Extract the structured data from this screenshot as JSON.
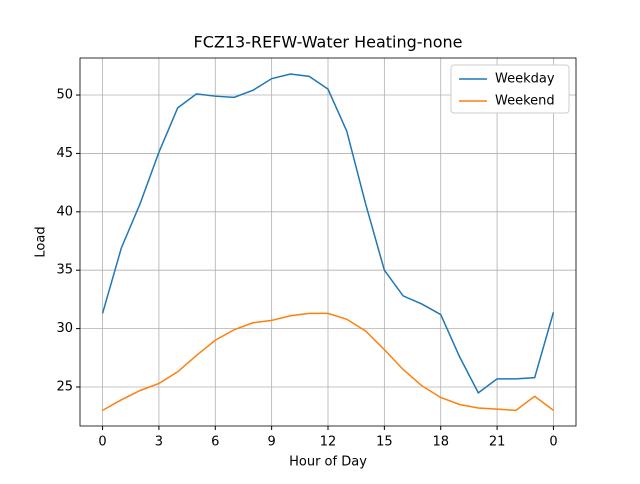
{
  "chart_data": {
    "type": "line",
    "title": "FCZ13-REFW-Water Heating-none",
    "xlabel": "Hour of Day",
    "ylabel": "Load",
    "x": [
      0,
      1,
      2,
      3,
      4,
      5,
      6,
      7,
      8,
      9,
      10,
      11,
      12,
      13,
      14,
      15,
      16,
      17,
      18,
      19,
      20,
      21,
      22,
      23,
      24
    ],
    "series": [
      {
        "name": "Weekday",
        "color": "#1f77b4",
        "values": [
          31.3,
          36.9,
          40.7,
          45.1,
          48.9,
          50.1,
          49.9,
          49.8,
          50.4,
          51.4,
          51.8,
          51.6,
          50.5,
          46.9,
          40.7,
          35.0,
          32.8,
          32.1,
          31.2,
          27.6,
          24.5,
          25.7,
          25.7,
          25.8,
          31.4
        ]
      },
      {
        "name": "Weekend",
        "color": "#ff7f0e",
        "values": [
          23.0,
          23.9,
          24.7,
          25.3,
          26.3,
          27.7,
          29.0,
          29.9,
          30.5,
          30.7,
          31.1,
          31.3,
          31.3,
          30.8,
          29.8,
          28.2,
          26.5,
          25.1,
          24.1,
          23.5,
          23.2,
          23.1,
          23.0,
          24.2,
          23.0
        ]
      }
    ],
    "xlim": [
      -1.2,
      25.2
    ],
    "xticks": [
      0,
      3,
      6,
      9,
      12,
      15,
      18,
      21,
      {
        "value": 24,
        "label": "0"
      }
    ],
    "ylim": [
      21.66,
      53.17
    ],
    "yticks": [
      25,
      30,
      35,
      40,
      45,
      50
    ],
    "grid": true,
    "legend": "upper right"
  }
}
